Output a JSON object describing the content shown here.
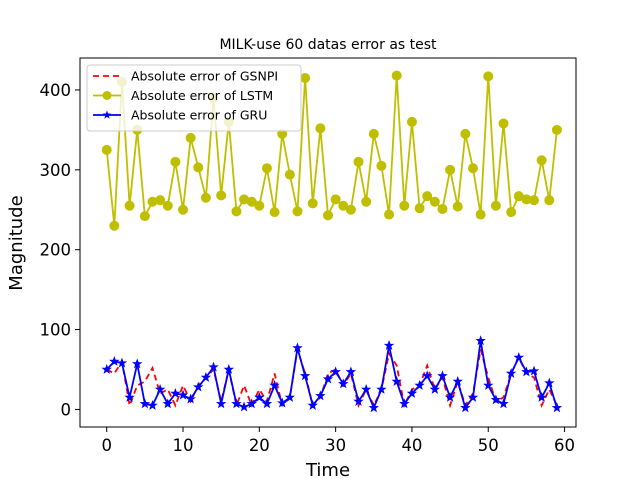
{
  "chart_data": {
    "type": "line",
    "title": "MILK-use 60 datas error as test",
    "xlabel": "Time",
    "ylabel": "Magnitude",
    "xlim": [
      -3.5,
      61.5
    ],
    "ylim": [
      -22,
      440
    ],
    "xticks": [
      0,
      10,
      20,
      30,
      40,
      50,
      60
    ],
    "yticks": [
      0,
      100,
      200,
      300,
      400
    ],
    "legend_position": "top-left",
    "grid": false,
    "series": [
      {
        "name": "Absolute error of GSNPI",
        "color": "#ff0000",
        "style": "dashed",
        "marker": "none",
        "values": [
          50,
          45,
          60,
          5,
          30,
          35,
          52,
          20,
          25,
          5,
          30,
          10,
          30,
          40,
          50,
          10,
          50,
          5,
          30,
          5,
          25,
          10,
          45,
          5,
          15,
          75,
          45,
          5,
          15,
          45,
          50,
          30,
          45,
          5,
          25,
          5,
          25,
          70,
          55,
          5,
          25,
          30,
          55,
          25,
          40,
          5,
          35,
          5,
          20,
          75,
          40,
          10,
          15,
          45,
          65,
          45,
          40,
          5,
          25,
          5
        ]
      },
      {
        "name": "Absolute error of LSTM",
        "color": "#bfbf00",
        "style": "solid",
        "marker": "circle",
        "values": [
          325,
          230,
          410,
          255,
          350,
          242,
          260,
          262,
          255,
          310,
          250,
          340,
          303,
          265,
          390,
          268,
          360,
          248,
          263,
          260,
          255,
          302,
          247,
          345,
          294,
          248,
          415,
          258,
          352,
          243,
          263,
          255,
          250,
          310,
          260,
          345,
          305,
          244,
          418,
          255,
          360,
          252,
          267,
          260,
          251,
          300,
          254,
          345,
          302,
          244,
          417,
          255,
          358,
          247,
          267,
          263,
          262,
          312,
          262,
          350
        ]
      },
      {
        "name": "Absolute error of GRU",
        "color": "#0000ff",
        "style": "solid",
        "marker": "star",
        "values": [
          50,
          60,
          58,
          15,
          57,
          7,
          5,
          25,
          7,
          20,
          18,
          13,
          28,
          40,
          53,
          7,
          50,
          7,
          3,
          7,
          15,
          7,
          30,
          8,
          15,
          77,
          42,
          5,
          17,
          38,
          47,
          32,
          47,
          10,
          25,
          2,
          25,
          80,
          35,
          7,
          20,
          30,
          42,
          25,
          42,
          15,
          35,
          2,
          15,
          86,
          30,
          12,
          7,
          45,
          65,
          47,
          48,
          15,
          33,
          2
        ]
      }
    ]
  }
}
